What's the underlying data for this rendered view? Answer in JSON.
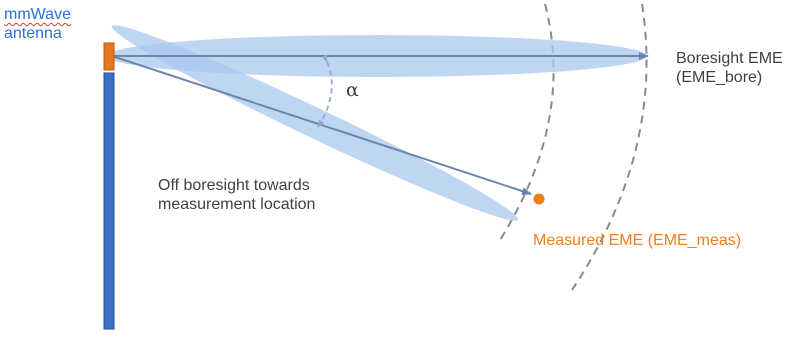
{
  "antenna": {
    "label_line1": "mmWave",
    "label_line2": "antenna"
  },
  "boresight": {
    "label_line1": "Boresight EME",
    "label_line2": "(EME_bore)"
  },
  "off_boresight": {
    "label_line1": "Off boresight towards",
    "label_line2": "measurement location"
  },
  "measured": {
    "label": "Measured EME (EME_meas)"
  },
  "angle": {
    "symbol": "α"
  },
  "colors": {
    "antenna_label": "#2f6fd6",
    "feed": "#e87722",
    "mast": "#3a6fc4",
    "beam_fill": "#a9c8ef",
    "arrow": "#6b86a8",
    "measured_point": "#f07f1b",
    "wavefront": "#8a8a8a",
    "text": "#404040"
  }
}
